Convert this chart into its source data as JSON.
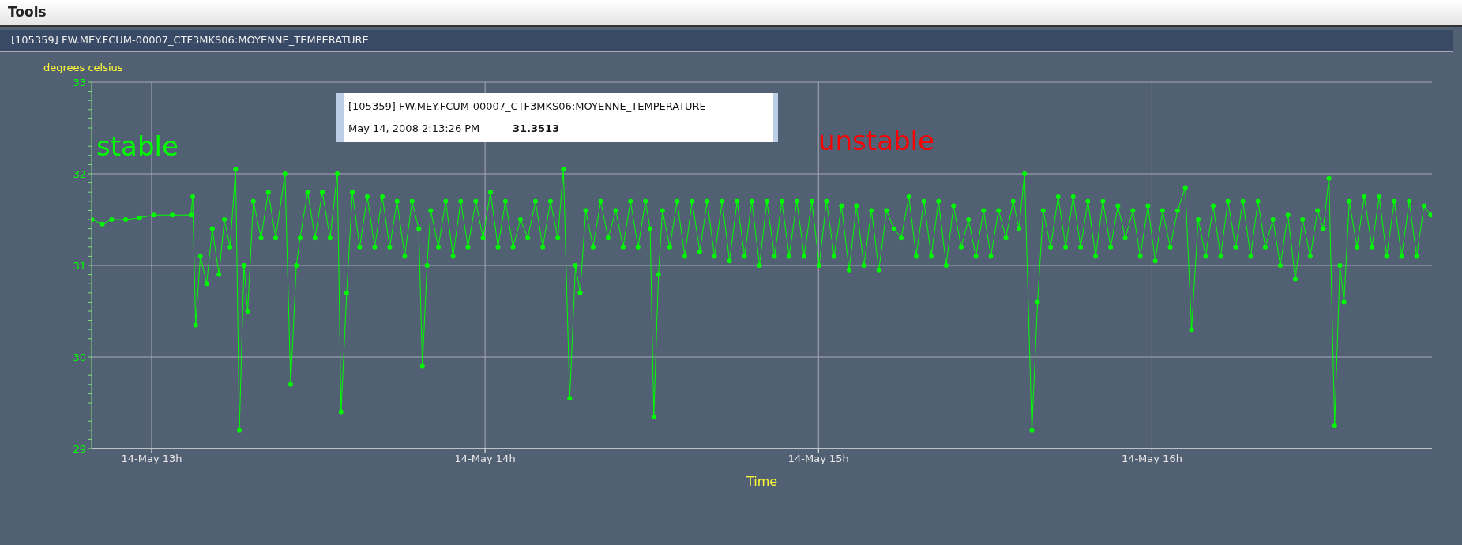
{
  "chart_data": {
    "type": "line",
    "title": "[105359] FW.MEY.FCUM-00007_CTF3MKS06:MOYENNE_TEMPERATURE",
    "xlabel": "Time",
    "ylabel": "degrees celsius",
    "annotations": [
      "Tools",
      "stable",
      "unstable",
      "[105359] FW.MEY.FCUM-00007_CTF3MKS06:MOYENNE_TEMPERATURE",
      "May 14, 2008 2:13:26 PM",
      "31.3513"
    ],
    "x": [
      "2008-05-14T12:49:16",
      "2008-05-14T12:51:07",
      "2008-05-14T12:52:48",
      "2008-05-14T12:55:19",
      "2008-05-14T12:57:50",
      "2008-05-14T13:00:22",
      "2008-05-14T13:03:43",
      "2008-05-14T13:07:05",
      "2008-05-14T13:07:23",
      "2008-05-14T13:07:55",
      "2008-05-14T13:08:46",
      "2008-05-14T13:09:54",
      "2008-05-14T13:10:55",
      "2008-05-14T13:12:07",
      "2008-05-14T13:13:05",
      "2008-05-14T13:14:06",
      "2008-05-14T13:15:07",
      "2008-05-14T13:15:47",
      "2008-05-14T13:16:37",
      "2008-05-14T13:17:17",
      "2008-05-14T13:18:18",
      "2008-05-14T13:19:41",
      "2008-05-14T13:21:00",
      "2008-05-14T13:22:19",
      "2008-05-14T13:24:00",
      "2008-05-14T13:25:01",
      "2008-05-14T13:26:02",
      "2008-05-14T13:26:42",
      "2008-05-14T13:28:05",
      "2008-05-14T13:29:24",
      "2008-05-14T13:30:43",
      "2008-05-14T13:32:06",
      "2008-05-14T13:33:25",
      "2008-05-14T13:34:05",
      "2008-05-14T13:35:06",
      "2008-05-14T13:36:07",
      "2008-05-14T13:37:26",
      "2008-05-14T13:38:49",
      "2008-05-14T13:40:08",
      "2008-05-14T13:41:31",
      "2008-05-14T13:42:50",
      "2008-05-14T13:44:10",
      "2008-05-14T13:45:32",
      "2008-05-14T13:46:52",
      "2008-05-14T13:48:04",
      "2008-05-14T13:48:43",
      "2008-05-14T13:49:34",
      "2008-05-14T13:50:13",
      "2008-05-14T13:51:36",
      "2008-05-14T13:52:55",
      "2008-05-14T13:54:14",
      "2008-05-14T13:55:37",
      "2008-05-14T13:56:56",
      "2008-05-14T13:58:19",
      "2008-05-14T13:59:38",
      "2008-05-14T14:00:58",
      "2008-05-14T14:02:20",
      "2008-05-14T14:03:40",
      "2008-05-14T14:05:02",
      "2008-05-14T14:06:22",
      "2008-05-14T14:07:41",
      "2008-05-14T14:09:04",
      "2008-05-14T14:10:23",
      "2008-05-14T14:11:46",
      "2008-05-14T14:13:05",
      "2008-05-14T14:14:06",
      "2008-05-14T14:15:14",
      "2008-05-14T14:16:16",
      "2008-05-14T14:17:06",
      "2008-05-14T14:18:07",
      "2008-05-14T14:19:26",
      "2008-05-14T14:20:49",
      "2008-05-14T14:22:08",
      "2008-05-14T14:23:31",
      "2008-05-14T14:24:50",
      "2008-05-14T14:26:10",
      "2008-05-14T14:27:32",
      "2008-05-14T14:28:52",
      "2008-05-14T14:29:42",
      "2008-05-14T14:30:22",
      "2008-05-14T14:31:12",
      "2008-05-14T14:31:55",
      "2008-05-14T14:33:14",
      "2008-05-14T14:34:34",
      "2008-05-14T14:35:56",
      "2008-05-14T14:37:16",
      "2008-05-14T14:38:38",
      "2008-05-14T14:39:58",
      "2008-05-14T14:41:17",
      "2008-05-14T14:42:40",
      "2008-05-14T14:43:59",
      "2008-05-14T14:45:22",
      "2008-05-14T14:46:41",
      "2008-05-14T14:48:00",
      "2008-05-14T14:49:23",
      "2008-05-14T14:50:42",
      "2008-05-14T14:52:05",
      "2008-05-14T14:53:24",
      "2008-05-14T14:54:43",
      "2008-05-14T14:56:06",
      "2008-05-14T14:57:25",
      "2008-05-14T14:58:48",
      "2008-05-14T15:00:07",
      "2008-05-14T15:01:26",
      "2008-05-14T15:02:49",
      "2008-05-14T15:04:08",
      "2008-05-14T15:05:31",
      "2008-05-14T15:06:50",
      "2008-05-14T15:08:10",
      "2008-05-14T15:09:32",
      "2008-05-14T15:10:52",
      "2008-05-14T15:12:14",
      "2008-05-14T15:13:34",
      "2008-05-14T15:14:53",
      "2008-05-14T15:16:16",
      "2008-05-14T15:17:35",
      "2008-05-14T15:18:58",
      "2008-05-14T15:20:17",
      "2008-05-14T15:21:36",
      "2008-05-14T15:22:59",
      "2008-05-14T15:24:18",
      "2008-05-14T15:25:41",
      "2008-05-14T15:27:00",
      "2008-05-14T15:28:19",
      "2008-05-14T15:29:42",
      "2008-05-14T15:31:01",
      "2008-05-14T15:32:24",
      "2008-05-14T15:33:43",
      "2008-05-14T15:35:02",
      "2008-05-14T15:36:04",
      "2008-05-14T15:37:05",
      "2008-05-14T15:38:24",
      "2008-05-14T15:39:25",
      "2008-05-14T15:40:26",
      "2008-05-14T15:41:46",
      "2008-05-14T15:43:08",
      "2008-05-14T15:44:28",
      "2008-05-14T15:45:50",
      "2008-05-14T15:47:10",
      "2008-05-14T15:48:29",
      "2008-05-14T15:49:52",
      "2008-05-14T15:51:11",
      "2008-05-14T15:52:34",
      "2008-05-14T15:53:53",
      "2008-05-14T15:55:12",
      "2008-05-14T15:56:35",
      "2008-05-14T15:57:54",
      "2008-05-14T15:59:17",
      "2008-05-14T16:00:36",
      "2008-05-14T16:01:55",
      "2008-05-14T16:03:18",
      "2008-05-14T16:04:37",
      "2008-05-14T16:06:00",
      "2008-05-14T16:07:08",
      "2008-05-14T16:08:20",
      "2008-05-14T16:09:40",
      "2008-05-14T16:11:02",
      "2008-05-14T16:12:22",
      "2008-05-14T16:13:41",
      "2008-05-14T16:15:04",
      "2008-05-14T16:16:23",
      "2008-05-14T16:17:46",
      "2008-05-14T16:19:05",
      "2008-05-14T16:20:24",
      "2008-05-14T16:21:47",
      "2008-05-14T16:23:06",
      "2008-05-14T16:24:29",
      "2008-05-14T16:25:48",
      "2008-05-14T16:27:07",
      "2008-05-14T16:28:30",
      "2008-05-14T16:29:49",
      "2008-05-14T16:30:50",
      "2008-05-14T16:31:52",
      "2008-05-14T16:32:53",
      "2008-05-14T16:33:50",
      "2008-05-14T16:34:34",
      "2008-05-14T16:35:31",
      "2008-05-14T16:36:54",
      "2008-05-14T16:38:13",
      "2008-05-14T16:39:36",
      "2008-05-14T16:40:55",
      "2008-05-14T16:42:14",
      "2008-05-14T16:43:37",
      "2008-05-14T16:44:56",
      "2008-05-14T16:46:19",
      "2008-05-14T16:47:38",
      "2008-05-14T16:48:58",
      "2008-05-14T16:50:10"
    ],
    "series": [
      {
        "color": "#00ff00",
        "values": [
          31.5,
          31.45,
          31.5,
          31.5,
          31.52,
          31.55,
          31.55,
          31.55,
          31.75,
          30.35,
          31.1,
          30.8,
          31.4,
          30.9,
          31.5,
          31.2,
          32.05,
          29.2,
          31.0,
          30.5,
          31.7,
          31.3,
          31.8,
          31.3,
          32.0,
          29.7,
          31.0,
          31.3,
          31.8,
          31.3,
          31.8,
          31.3,
          32.0,
          29.4,
          30.7,
          31.8,
          31.2,
          31.75,
          31.2,
          31.75,
          31.2,
          31.7,
          31.1,
          31.7,
          31.4,
          29.9,
          31.0,
          31.6,
          31.2,
          31.7,
          31.1,
          31.7,
          31.2,
          31.7,
          31.3,
          31.8,
          31.2,
          31.7,
          31.2,
          31.5,
          31.3,
          31.7,
          31.2,
          31.7,
          31.3,
          32.05,
          29.55,
          31.0,
          30.7,
          31.6,
          31.2,
          31.7,
          31.3,
          31.6,
          31.2,
          31.7,
          31.2,
          31.7,
          31.4,
          29.35,
          30.9,
          31.6,
          31.2,
          31.7,
          31.1,
          31.7,
          31.15,
          31.7,
          31.1,
          31.7,
          31.05,
          31.7,
          31.1,
          31.7,
          31.0,
          31.7,
          31.1,
          31.7,
          31.1,
          31.7,
          31.1,
          31.7,
          31.0,
          31.7,
          31.1,
          31.65,
          30.95,
          31.65,
          31.0,
          31.6,
          30.95,
          31.6,
          31.4,
          31.3,
          31.75,
          31.1,
          31.7,
          31.1,
          31.7,
          31.0,
          31.65,
          31.2,
          31.5,
          31.1,
          31.6,
          31.1,
          31.6,
          31.3,
          31.7,
          31.4,
          32.0,
          29.2,
          30.6,
          31.6,
          31.2,
          31.75,
          31.2,
          31.75,
          31.2,
          31.7,
          31.1,
          31.7,
          31.2,
          31.65,
          31.3,
          31.6,
          31.1,
          31.65,
          31.05,
          31.6,
          31.2,
          31.6,
          31.85,
          30.3,
          31.5,
          31.1,
          31.65,
          31.1,
          31.7,
          31.2,
          31.7,
          31.1,
          31.7,
          31.2,
          31.5,
          31.0,
          31.55,
          30.85,
          31.5,
          31.1,
          31.6,
          31.4,
          31.95,
          29.25,
          31.0,
          30.6,
          31.7,
          31.2,
          31.75,
          31.2,
          31.75,
          31.1,
          31.7,
          31.1,
          31.7,
          31.1,
          31.65,
          31.55
        ]
      }
    ],
    "xlim": [
      "2008-05-14T12:49:12",
      "2008-05-14T16:50:24"
    ],
    "xticks": [
      {
        "value": "2008-05-14T13:00",
        "label": "14-May 13h"
      },
      {
        "value": "2008-05-14T14:00",
        "label": "14-May 14h"
      },
      {
        "value": "2008-05-14T15:00",
        "label": "14-May 15h"
      },
      {
        "value": "2008-05-14T16:00",
        "label": "14-May 16h"
      }
    ],
    "ylim": [
      29,
      33
    ],
    "yticks": [
      29,
      {
        "value": 29.1,
        "label": null
      },
      {
        "value": 29.2,
        "label": null
      },
      {
        "value": 29.3,
        "label": null
      },
      {
        "value": 29.4,
        "label": null
      },
      {
        "value": 29.5,
        "label": null
      },
      {
        "value": 29.6,
        "label": null
      },
      {
        "value": 29.7,
        "label": null
      },
      {
        "value": 29.8,
        "label": null
      },
      {
        "value": 29.9,
        "label": null
      },
      30,
      {
        "value": 30.1,
        "label": null
      },
      {
        "value": 30.2,
        "label": null
      },
      {
        "value": 30.3,
        "label": null
      },
      {
        "value": 30.4,
        "label": null
      },
      {
        "value": 30.5,
        "label": null
      },
      {
        "value": 30.6,
        "label": null
      },
      {
        "value": 30.7,
        "label": null
      },
      {
        "value": 30.8,
        "label": null
      },
      {
        "value": 30.9,
        "label": null
      },
      31,
      {
        "value": 31.1,
        "label": null
      },
      {
        "value": 31.2,
        "label": null
      },
      {
        "value": 31.3,
        "label": null
      },
      {
        "value": 31.4,
        "label": null
      },
      {
        "value": 31.5,
        "label": null
      },
      {
        "value": 31.6,
        "label": null
      },
      {
        "value": 31.7,
        "label": null
      },
      {
        "value": 31.8,
        "label": null
      },
      {
        "value": 31.9,
        "label": null
      },
      32,
      {
        "value": 32.1,
        "label": null
      },
      {
        "value": 32.2,
        "label": null
      },
      {
        "value": 32.3,
        "label": null
      },
      {
        "value": 32.4,
        "label": null
      },
      {
        "value": 32.5,
        "label": null
      },
      {
        "value": 32.6,
        "label": null
      },
      {
        "value": 32.7,
        "label": null
      },
      {
        "value": 32.8,
        "label": null
      },
      {
        "value": 32.9,
        "label": null
      },
      33
    ],
    "grid": true,
    "marker": "circle",
    "line_style": "solid"
  }
}
